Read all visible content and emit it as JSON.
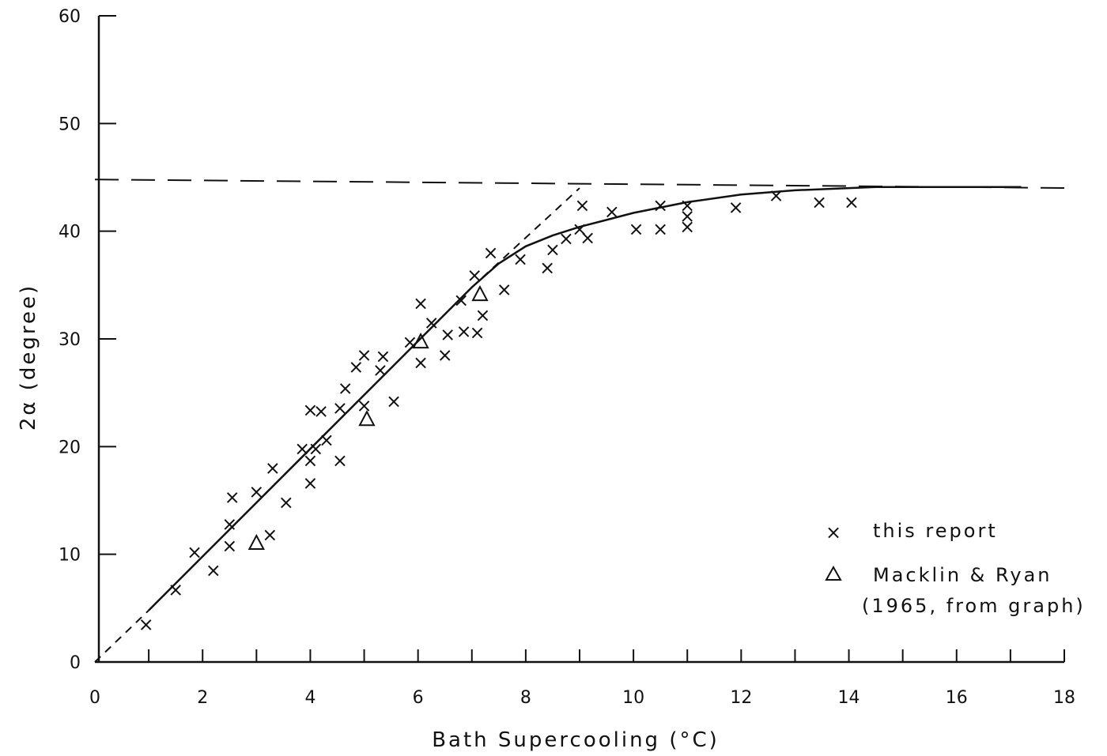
{
  "chart_data": {
    "type": "scatter",
    "title": "",
    "xlabel": "Bath Supercooling (°C)",
    "ylabel": "2α (degree)",
    "xlim": [
      0,
      18
    ],
    "ylim": [
      0,
      60
    ],
    "xticks": [
      0,
      2,
      4,
      6,
      8,
      10,
      12,
      14,
      16,
      18
    ],
    "yticks": [
      0,
      10,
      20,
      30,
      40,
      50,
      60
    ],
    "grid": false,
    "legend_position": "bottom-right",
    "series": [
      {
        "name": "this report",
        "marker": "x",
        "points": [
          [
            0.95,
            3.5
          ],
          [
            1.5,
            6.7
          ],
          [
            1.85,
            10.2
          ],
          [
            2.2,
            8.5
          ],
          [
            2.5,
            10.8
          ],
          [
            2.5,
            12.8
          ],
          [
            2.55,
            15.3
          ],
          [
            3.0,
            15.8
          ],
          [
            3.25,
            11.8
          ],
          [
            3.3,
            18.0
          ],
          [
            3.55,
            14.8
          ],
          [
            3.85,
            19.8
          ],
          [
            4.0,
            16.6
          ],
          [
            4.0,
            18.7
          ],
          [
            4.0,
            23.4
          ],
          [
            4.1,
            19.8
          ],
          [
            4.2,
            23.3
          ],
          [
            4.3,
            20.6
          ],
          [
            4.55,
            18.7
          ],
          [
            4.55,
            23.6
          ],
          [
            4.65,
            25.4
          ],
          [
            4.85,
            27.4
          ],
          [
            5.0,
            28.5
          ],
          [
            5.0,
            23.8
          ],
          [
            5.3,
            27.1
          ],
          [
            5.35,
            28.4
          ],
          [
            5.55,
            24.2
          ],
          [
            5.85,
            29.7
          ],
          [
            6.05,
            33.3
          ],
          [
            6.05,
            27.8
          ],
          [
            6.25,
            31.5
          ],
          [
            6.5,
            28.5
          ],
          [
            6.55,
            30.4
          ],
          [
            6.8,
            33.6
          ],
          [
            6.85,
            30.7
          ],
          [
            7.05,
            35.9
          ],
          [
            7.1,
            30.6
          ],
          [
            7.2,
            32.2
          ],
          [
            7.35,
            38.0
          ],
          [
            7.6,
            34.6
          ],
          [
            7.9,
            37.4
          ],
          [
            8.4,
            36.6
          ],
          [
            8.5,
            38.3
          ],
          [
            8.75,
            39.3
          ],
          [
            9.0,
            40.2
          ],
          [
            9.05,
            42.4
          ],
          [
            9.15,
            39.4
          ],
          [
            9.6,
            41.8
          ],
          [
            10.05,
            40.2
          ],
          [
            10.5,
            42.4
          ],
          [
            10.5,
            40.2
          ],
          [
            11.0,
            42.4
          ],
          [
            11.0,
            41.4
          ],
          [
            11.0,
            40.4
          ],
          [
            11.9,
            42.2
          ],
          [
            12.65,
            43.3
          ],
          [
            13.45,
            42.7
          ],
          [
            14.05,
            42.7
          ]
        ]
      },
      {
        "name": "Macklin & Ryan (1965, from graph)",
        "marker": "triangle",
        "points": [
          [
            3.0,
            11.0
          ],
          [
            5.05,
            22.5
          ],
          [
            6.05,
            29.7
          ],
          [
            7.15,
            34.1
          ]
        ]
      }
    ],
    "lines": [
      {
        "style": "solid",
        "points": [
          [
            1.0,
            4.8
          ],
          [
            7.0,
            34.8
          ],
          [
            7.5,
            37.0
          ],
          [
            8.0,
            38.6
          ],
          [
            8.5,
            39.6
          ],
          [
            9.0,
            40.4
          ],
          [
            10.0,
            41.7
          ],
          [
            11.0,
            42.7
          ],
          [
            12.0,
            43.4
          ],
          [
            13.0,
            43.8
          ],
          [
            14.0,
            44.0
          ],
          [
            14.5,
            44.1
          ],
          [
            17.2,
            44.1
          ]
        ]
      },
      {
        "style": "dashed",
        "points": [
          [
            0.0,
            44.8
          ],
          [
            18.2,
            44.0
          ]
        ]
      },
      {
        "style": "dashed",
        "points": [
          [
            0.0,
            0.0
          ],
          [
            1.0,
            4.8
          ]
        ]
      },
      {
        "style": "dashed",
        "points": [
          [
            7.0,
            34.8
          ],
          [
            9.0,
            44.0
          ]
        ]
      }
    ],
    "legend": [
      {
        "marker": "x",
        "label": "this report"
      },
      {
        "marker": "triangle",
        "label": "Macklin & Ryan",
        "label_line2": "(1965, from graph)"
      }
    ]
  }
}
